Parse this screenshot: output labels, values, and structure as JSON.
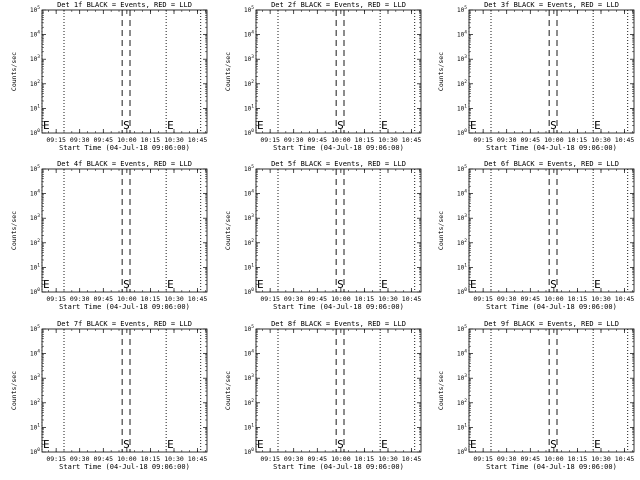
{
  "figure": {
    "background": "#ffffff",
    "ink": "#000000"
  },
  "chart_data": [
    {
      "type": "line",
      "title": "Det 1f BLACK = Events, RED = LLD",
      "xlabel": "Start Time (04-Jul-18 09:06:00)",
      "ylabel": "Counts/sec",
      "yscale": "log",
      "ylim": [
        1,
        100000
      ],
      "xlim": [
        "09:06",
        "10:51"
      ],
      "x_ticks": [
        "09:15",
        "09:30",
        "09:45",
        "10:00",
        "10:15",
        "10:30",
        "10:45"
      ],
      "y_ticks": [
        "10^0",
        "10^1",
        "10^2",
        "10^3",
        "10^4",
        "10^5"
      ],
      "series": [],
      "markers": [
        {
          "label": "E",
          "time": "09:06",
          "style": "dotted"
        },
        {
          "label": "",
          "time": "09:20",
          "style": "dotted"
        },
        {
          "label": "S",
          "time": "09:57",
          "style": "dashed"
        },
        {
          "label": "",
          "time": "10:02",
          "style": "dashed"
        },
        {
          "label": "E",
          "time": "10:25",
          "style": "dotted"
        },
        {
          "label": "",
          "time": "10:47",
          "style": "dotted"
        }
      ]
    },
    {
      "type": "line",
      "title": "Det 2f BLACK = Events, RED = LLD",
      "xlabel": "Start Time (04-Jul-18 09:06:00)",
      "ylabel": "Counts/sec",
      "yscale": "log",
      "ylim": [
        1,
        100000
      ],
      "xlim": [
        "09:06",
        "10:51"
      ],
      "x_ticks": [
        "09:15",
        "09:30",
        "09:45",
        "10:00",
        "10:15",
        "10:30",
        "10:45"
      ],
      "y_ticks": [
        "10^0",
        "10^1",
        "10^2",
        "10^3",
        "10^4",
        "10^5"
      ],
      "series": [],
      "markers": [
        {
          "label": "E",
          "time": "09:06",
          "style": "dotted"
        },
        {
          "label": "",
          "time": "09:20",
          "style": "dotted"
        },
        {
          "label": "S",
          "time": "09:57",
          "style": "dashed"
        },
        {
          "label": "",
          "time": "10:02",
          "style": "dashed"
        },
        {
          "label": "E",
          "time": "10:25",
          "style": "dotted"
        },
        {
          "label": "",
          "time": "10:47",
          "style": "dotted"
        }
      ]
    },
    {
      "type": "line",
      "title": "Det 3f BLACK = Events, RED = LLD",
      "xlabel": "Start Time (04-Jul-18 09:06:00)",
      "ylabel": "Counts/sec",
      "yscale": "log",
      "ylim": [
        1,
        100000
      ],
      "xlim": [
        "09:06",
        "10:51"
      ],
      "x_ticks": [
        "09:15",
        "09:30",
        "09:45",
        "10:00",
        "10:15",
        "10:30",
        "10:45"
      ],
      "y_ticks": [
        "10^0",
        "10^1",
        "10^2",
        "10^3",
        "10^4",
        "10^5"
      ],
      "series": [],
      "markers": [
        {
          "label": "E",
          "time": "09:06",
          "style": "dotted"
        },
        {
          "label": "",
          "time": "09:20",
          "style": "dotted"
        },
        {
          "label": "S",
          "time": "09:57",
          "style": "dashed"
        },
        {
          "label": "",
          "time": "10:02",
          "style": "dashed"
        },
        {
          "label": "E",
          "time": "10:25",
          "style": "dotted"
        },
        {
          "label": "",
          "time": "10:47",
          "style": "dotted"
        }
      ]
    },
    {
      "type": "line",
      "title": "Det 4f BLACK = Events, RED = LLD",
      "xlabel": "Start Time (04-Jul-18 09:06:00)",
      "ylabel": "Counts/sec",
      "yscale": "log",
      "ylim": [
        1,
        100000
      ],
      "xlim": [
        "09:06",
        "10:51"
      ],
      "x_ticks": [
        "09:15",
        "09:30",
        "09:45",
        "10:00",
        "10:15",
        "10:30",
        "10:45"
      ],
      "y_ticks": [
        "10^0",
        "10^1",
        "10^2",
        "10^3",
        "10^4",
        "10^5"
      ],
      "series": [],
      "markers": [
        {
          "label": "E",
          "time": "09:06",
          "style": "dotted"
        },
        {
          "label": "",
          "time": "09:20",
          "style": "dotted"
        },
        {
          "label": "S",
          "time": "09:57",
          "style": "dashed"
        },
        {
          "label": "",
          "time": "10:02",
          "style": "dashed"
        },
        {
          "label": "E",
          "time": "10:25",
          "style": "dotted"
        },
        {
          "label": "",
          "time": "10:47",
          "style": "dotted"
        }
      ]
    },
    {
      "type": "line",
      "title": "Det 5f BLACK = Events, RED = LLD",
      "xlabel": "Start Time (04-Jul-18 09:06:00)",
      "ylabel": "Counts/sec",
      "yscale": "log",
      "ylim": [
        1,
        100000
      ],
      "xlim": [
        "09:06",
        "10:51"
      ],
      "x_ticks": [
        "09:15",
        "09:30",
        "09:45",
        "10:00",
        "10:15",
        "10:30",
        "10:45"
      ],
      "y_ticks": [
        "10^0",
        "10^1",
        "10^2",
        "10^3",
        "10^4",
        "10^5"
      ],
      "series": [],
      "markers": [
        {
          "label": "E",
          "time": "09:06",
          "style": "dotted"
        },
        {
          "label": "",
          "time": "09:20",
          "style": "dotted"
        },
        {
          "label": "S",
          "time": "09:57",
          "style": "dashed"
        },
        {
          "label": "",
          "time": "10:02",
          "style": "dashed"
        },
        {
          "label": "E",
          "time": "10:25",
          "style": "dotted"
        },
        {
          "label": "",
          "time": "10:47",
          "style": "dotted"
        }
      ]
    },
    {
      "type": "line",
      "title": "Det 6f BLACK = Events, RED = LLD",
      "xlabel": "Start Time (04-Jul-18 09:06:00)",
      "ylabel": "Counts/sec",
      "yscale": "log",
      "ylim": [
        1,
        100000
      ],
      "xlim": [
        "09:06",
        "10:51"
      ],
      "x_ticks": [
        "09:15",
        "09:30",
        "09:45",
        "10:00",
        "10:15",
        "10:30",
        "10:45"
      ],
      "y_ticks": [
        "10^0",
        "10^1",
        "10^2",
        "10^3",
        "10^4",
        "10^5"
      ],
      "series": [],
      "markers": [
        {
          "label": "E",
          "time": "09:06",
          "style": "dotted"
        },
        {
          "label": "",
          "time": "09:20",
          "style": "dotted"
        },
        {
          "label": "S",
          "time": "09:57",
          "style": "dashed"
        },
        {
          "label": "",
          "time": "10:02",
          "style": "dashed"
        },
        {
          "label": "E",
          "time": "10:25",
          "style": "dotted"
        },
        {
          "label": "",
          "time": "10:47",
          "style": "dotted"
        }
      ]
    },
    {
      "type": "line",
      "title": "Det 7f BLACK = Events, RED = LLD",
      "xlabel": "Start Time (04-Jul-18 09:06:00)",
      "ylabel": "Counts/sec",
      "yscale": "log",
      "ylim": [
        1,
        100000
      ],
      "xlim": [
        "09:06",
        "10:51"
      ],
      "x_ticks": [
        "09:15",
        "09:30",
        "09:45",
        "10:00",
        "10:15",
        "10:30",
        "10:45"
      ],
      "y_ticks": [
        "10^0",
        "10^1",
        "10^2",
        "10^3",
        "10^4",
        "10^5"
      ],
      "series": [],
      "markers": [
        {
          "label": "E",
          "time": "09:06",
          "style": "dotted"
        },
        {
          "label": "",
          "time": "09:20",
          "style": "dotted"
        },
        {
          "label": "S",
          "time": "09:57",
          "style": "dashed"
        },
        {
          "label": "",
          "time": "10:02",
          "style": "dashed"
        },
        {
          "label": "E",
          "time": "10:25",
          "style": "dotted"
        },
        {
          "label": "",
          "time": "10:47",
          "style": "dotted"
        }
      ]
    },
    {
      "type": "line",
      "title": "Det 8f BLACK = Events, RED = LLD",
      "xlabel": "Start Time (04-Jul-18 09:06:00)",
      "ylabel": "Counts/sec",
      "yscale": "log",
      "ylim": [
        1,
        100000
      ],
      "xlim": [
        "09:06",
        "10:51"
      ],
      "x_ticks": [
        "09:15",
        "09:30",
        "09:45",
        "10:00",
        "10:15",
        "10:30",
        "10:45"
      ],
      "y_ticks": [
        "10^0",
        "10^1",
        "10^2",
        "10^3",
        "10^4",
        "10^5"
      ],
      "series": [],
      "markers": [
        {
          "label": "E",
          "time": "09:06",
          "style": "dotted"
        },
        {
          "label": "",
          "time": "09:20",
          "style": "dotted"
        },
        {
          "label": "S",
          "time": "09:57",
          "style": "dashed"
        },
        {
          "label": "",
          "time": "10:02",
          "style": "dashed"
        },
        {
          "label": "E",
          "time": "10:25",
          "style": "dotted"
        },
        {
          "label": "",
          "time": "10:47",
          "style": "dotted"
        }
      ]
    },
    {
      "type": "line",
      "title": "Det 9f BLACK = Events, RED = LLD",
      "xlabel": "Start Time (04-Jul-18 09:06:00)",
      "ylabel": "Counts/sec",
      "yscale": "log",
      "ylim": [
        1,
        100000
      ],
      "xlim": [
        "09:06",
        "10:51"
      ],
      "x_ticks": [
        "09:15",
        "09:30",
        "09:45",
        "10:00",
        "10:15",
        "10:30",
        "10:45"
      ],
      "y_ticks": [
        "10^0",
        "10^1",
        "10^2",
        "10^3",
        "10^4",
        "10^5"
      ],
      "series": [],
      "markers": [
        {
          "label": "E",
          "time": "09:06",
          "style": "dotted"
        },
        {
          "label": "",
          "time": "09:20",
          "style": "dotted"
        },
        {
          "label": "S",
          "time": "09:57",
          "style": "dashed"
        },
        {
          "label": "",
          "time": "10:02",
          "style": "dashed"
        },
        {
          "label": "E",
          "time": "10:25",
          "style": "dotted"
        },
        {
          "label": "",
          "time": "10:47",
          "style": "dotted"
        }
      ]
    }
  ]
}
